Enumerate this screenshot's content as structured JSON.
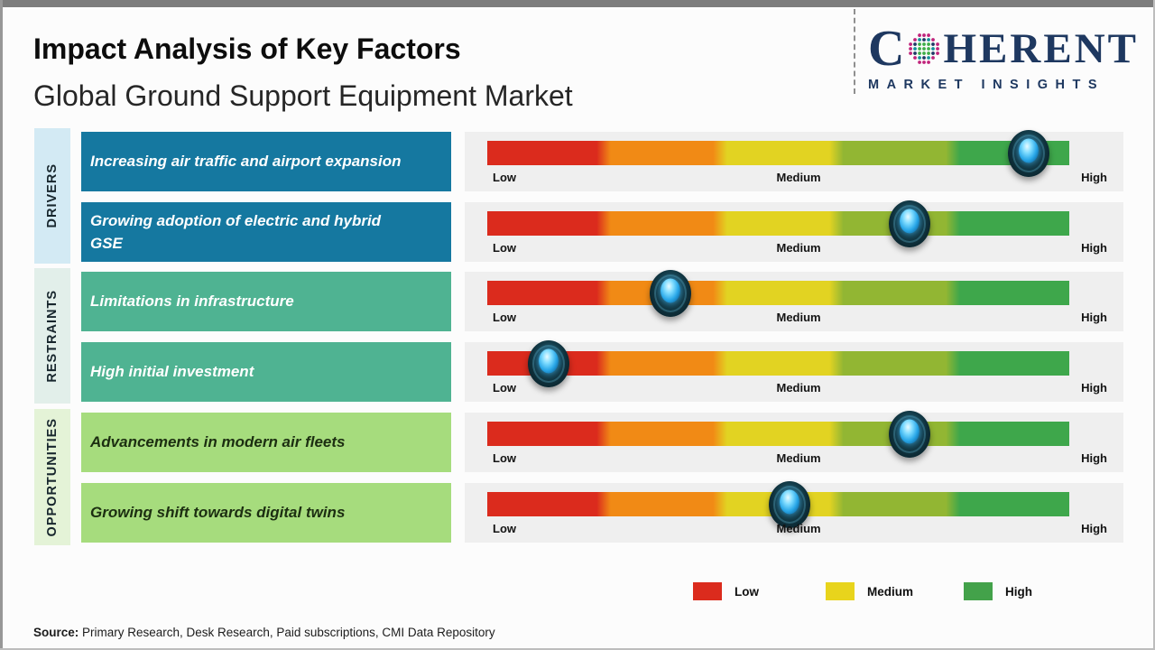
{
  "header": {
    "title": "Impact Analysis of Key Factors",
    "subtitle": "Global Ground Support Equipment Market"
  },
  "logo": {
    "brand_first_letter": "C",
    "brand_rest": "HERENT",
    "tagline": "MARKET INSIGHTS",
    "colors": {
      "navy": "#1E3860",
      "pink": "#C0247B",
      "green": "#3FAE49",
      "teal": "#159099"
    }
  },
  "scale_labels": {
    "low": "Low",
    "medium": "Medium",
    "high": "High"
  },
  "bar_segments": [
    "#DB2B1D",
    "#F18A15",
    "#E2D322",
    "#92B633",
    "#3EA74B"
  ],
  "marker_colors": {
    "outer": "#0E3340",
    "core": "#2FB4F0"
  },
  "groups": [
    {
      "label": "DRIVERS",
      "strip_bg": "#D3EAF4",
      "box_bg": "#1578A0",
      "box_fg": "#FFFFFF",
      "factors": [
        {
          "text": "Increasing air traffic and airport expansion",
          "impact_pct": 93
        },
        {
          "text": "Growing adoption of electric and hybrid\nGSE",
          "impact_pct": 72.5
        }
      ]
    },
    {
      "label": "RESTRAINTS",
      "strip_bg": "#E2EFEA",
      "box_bg": "#4FB392",
      "box_fg": "#FFFFFF",
      "factors": [
        {
          "text": "Limitations in infrastructure",
          "impact_pct": 31.5
        },
        {
          "text": "High initial investment",
          "impact_pct": 10.5
        }
      ]
    },
    {
      "label": "OPPORTUNITIES",
      "strip_bg": "#E4F3D7",
      "box_bg": "#A6DC7D",
      "box_fg": "#1C2E11",
      "factors": [
        {
          "text": "Advancements in modern air fleets",
          "impact_pct": 72.5
        },
        {
          "text": "Growing shift towards digital twins",
          "impact_pct": 52
        }
      ]
    }
  ],
  "legend": [
    {
      "label": "Low",
      "color": "#DB2B1D"
    },
    {
      "label": "Medium",
      "color": "#E8D41C"
    },
    {
      "label": "High",
      "color": "#43A24A"
    }
  ],
  "source": {
    "prefix": "Source:",
    "text": " Primary Research, Desk Research, Paid subscriptions, CMI Data Repository"
  },
  "chart_data": {
    "type": "scatter",
    "title": "Impact Analysis of Key Factors",
    "subtitle": "Global Ground Support Equipment Market",
    "x_scale": {
      "labels": [
        "Low",
        "Medium",
        "High"
      ],
      "range_pct": [
        0,
        100
      ],
      "segment_colors": [
        "#DB2B1D",
        "#F18A15",
        "#E2D322",
        "#92B633",
        "#3EA74B"
      ]
    },
    "points": [
      {
        "group": "Drivers",
        "factor": "Increasing air traffic and airport expansion",
        "impact_pct": 93,
        "impact_level": "High"
      },
      {
        "group": "Drivers",
        "factor": "Growing adoption of electric and hybrid GSE",
        "impact_pct": 72.5,
        "impact_level": "Medium-High"
      },
      {
        "group": "Restraints",
        "factor": "Limitations in infrastructure",
        "impact_pct": 31.5,
        "impact_level": "Low-Medium"
      },
      {
        "group": "Restraints",
        "factor": "High initial investment",
        "impact_pct": 10.5,
        "impact_level": "Low"
      },
      {
        "group": "Opportunities",
        "factor": "Advancements in modern air fleets",
        "impact_pct": 72.5,
        "impact_level": "Medium-High"
      },
      {
        "group": "Opportunities",
        "factor": "Growing shift towards digital twins",
        "impact_pct": 52,
        "impact_level": "Medium"
      }
    ],
    "legend_entries": [
      "Low",
      "Medium",
      "High"
    ],
    "legend_position": "bottom-right",
    "grid": false
  }
}
